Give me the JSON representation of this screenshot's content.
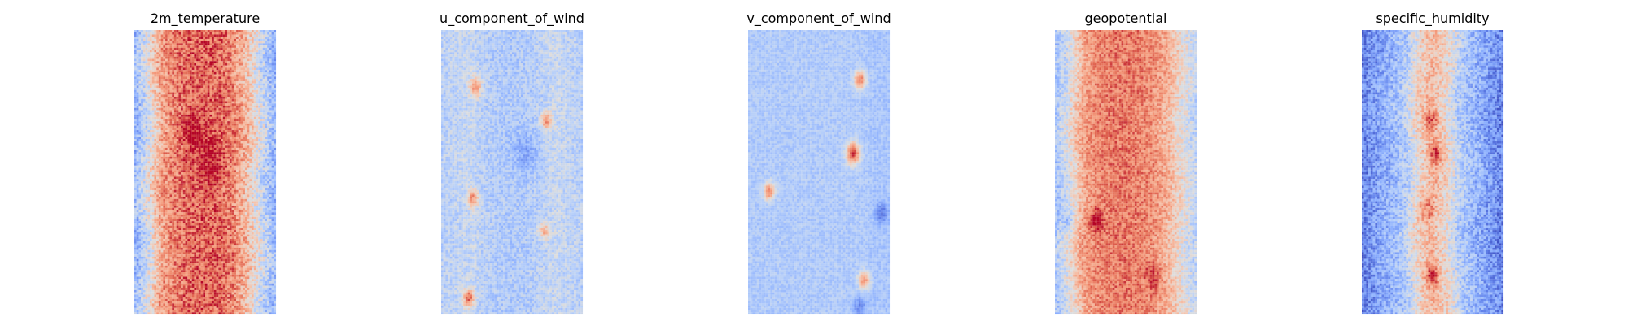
{
  "chart_data": [
    {
      "type": "heatmap",
      "title": "2m_temperature",
      "colormap": "coolwarm",
      "axes_visible": false,
      "grid": false,
      "field_description": "Warm center band with cooler, noisier columns at the left and right edges; small dark-red patches near the middle.",
      "column_profile_value_range": [
        -1,
        1
      ],
      "column_profile": [
        -0.45,
        0.0,
        0.5,
        0.65,
        0.72,
        0.75,
        0.72,
        0.6,
        0.3,
        -0.1,
        -0.45
      ]
    },
    {
      "type": "heatmap",
      "title": "u_component_of_wind",
      "colormap": "coolwarm",
      "axes_visible": false,
      "grid": false,
      "field_description": "Mostly light blue; narrow vertical streaks of red/orange in the left-center and right-center parts of the field.",
      "column_profile_value_range": [
        -1,
        1
      ],
      "column_profile": [
        -0.25,
        -0.2,
        -0.15,
        -0.25,
        -0.3,
        -0.3,
        -0.3,
        -0.25,
        -0.15,
        -0.2,
        -0.25
      ]
    },
    {
      "type": "heatmap",
      "title": "v_component_of_wind",
      "colormap": "coolwarm",
      "axes_visible": false,
      "grid": false,
      "field_description": "Nearly uniform pale blue with scattered small red spots and a few darker blue streaks on the right.",
      "column_profile_value_range": [
        -1,
        1
      ],
      "column_profile": [
        -0.3,
        -0.3,
        -0.3,
        -0.3,
        -0.3,
        -0.3,
        -0.3,
        -0.3,
        -0.3,
        -0.35,
        -0.35
      ]
    },
    {
      "type": "heatmap",
      "title": "geopotential",
      "colormap": "coolwarm",
      "axes_visible": false,
      "grid": false,
      "field_description": "Strong warm band across the center with cooler blue columns along the left edge and pale edges on the right.",
      "column_profile_value_range": [
        -1,
        1
      ],
      "column_profile": [
        -0.35,
        0.0,
        0.45,
        0.6,
        0.65,
        0.66,
        0.62,
        0.55,
        0.35,
        0.05,
        -0.2
      ]
    },
    {
      "type": "heatmap",
      "title": "specific_humidity",
      "colormap": "coolwarm",
      "axes_visible": false,
      "grid": false,
      "field_description": "Predominantly blue with darker blue at the edges and a narrow wavy red/pale streak near the horizontal center.",
      "column_profile_value_range": [
        -1,
        1
      ],
      "column_profile": [
        -0.75,
        -0.6,
        -0.45,
        -0.3,
        0.15,
        0.35,
        0.1,
        -0.3,
        -0.45,
        -0.6,
        -0.75
      ]
    }
  ]
}
